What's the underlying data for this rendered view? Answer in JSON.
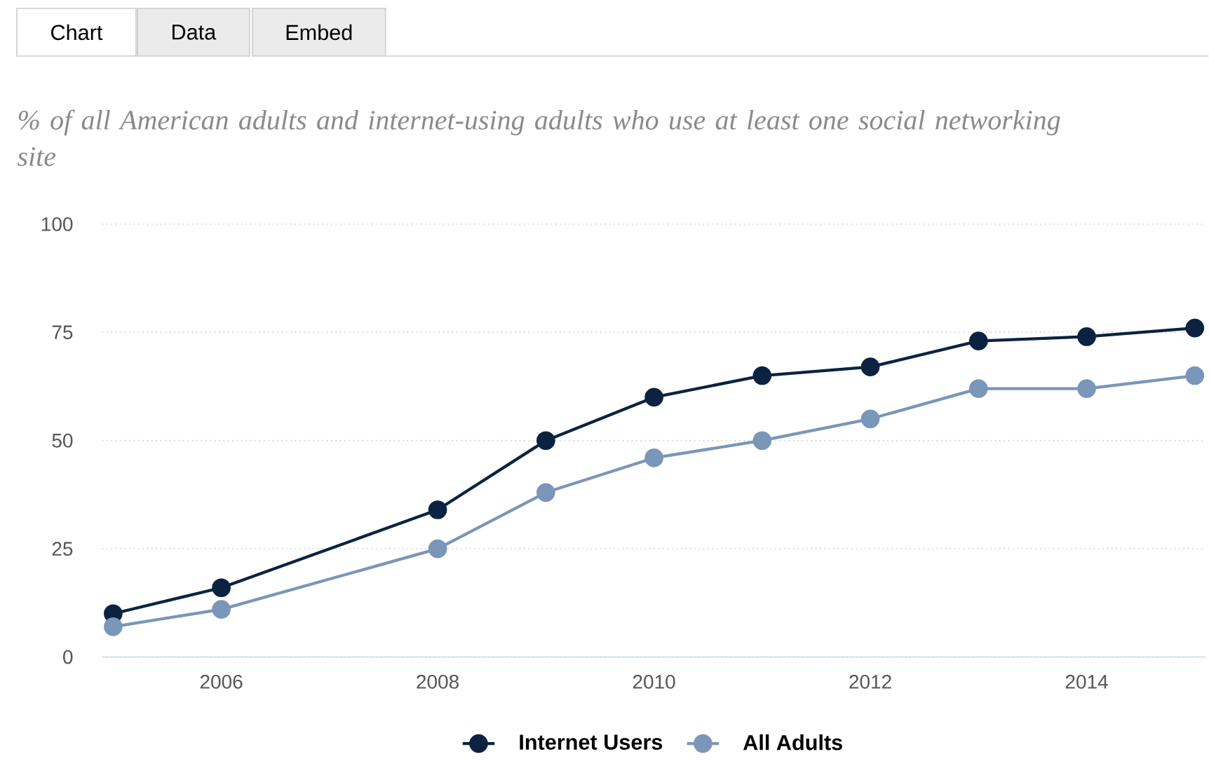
{
  "chart_data": {
    "type": "line",
    "title": "% of all American adults and internet-using adults who use at least one social networking site",
    "annotations": [
      "Chart",
      "Data",
      "Embed"
    ],
    "x": [
      2005,
      2006,
      2008,
      2009,
      2010,
      2011,
      2012,
      2013,
      2014,
      2015
    ],
    "series": [
      {
        "name": "Internet Users",
        "color": "#0b2341",
        "values": [
          10,
          16,
          34,
          50,
          60,
          65,
          67,
          73,
          74,
          76
        ]
      },
      {
        "name": "All Adults",
        "color": "#7a96b8",
        "values": [
          7,
          11,
          25,
          38,
          46,
          50,
          55,
          62,
          62,
          65
        ]
      }
    ],
    "xlim": [
      2004.9,
      2015.1
    ],
    "xticks": [
      2006,
      2008,
      2010,
      2012,
      2014
    ],
    "ylim": [
      0,
      100
    ],
    "yticks": [
      0,
      25,
      50,
      75,
      100
    ],
    "grid": "y",
    "legend": "bottom",
    "marker": "circle",
    "line_style": "solid"
  }
}
